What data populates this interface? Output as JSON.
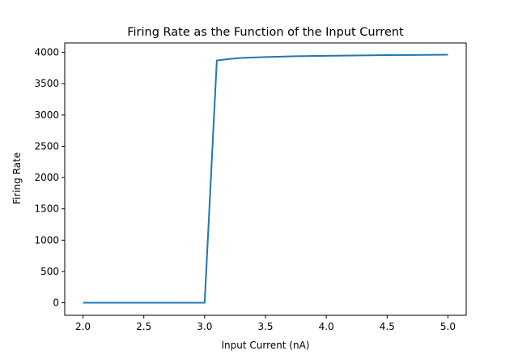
{
  "chart_data": {
    "type": "line",
    "title": "Firing Rate as the Function of the Input Current",
    "xlabel": "Input Current (nA)",
    "ylabel": "Firing Rate",
    "xlim": [
      1.85,
      5.15
    ],
    "ylim": [
      -200,
      4150
    ],
    "xticks": [
      2.0,
      2.5,
      3.0,
      3.5,
      4.0,
      4.5,
      5.0
    ],
    "xtick_labels": [
      "2.0",
      "2.5",
      "3.0",
      "3.5",
      "4.0",
      "4.5",
      "5.0"
    ],
    "yticks": [
      0,
      500,
      1000,
      1500,
      2000,
      2500,
      3000,
      3500,
      4000
    ],
    "ytick_labels": [
      "0",
      "500",
      "1000",
      "1500",
      "2000",
      "2500",
      "3000",
      "3500",
      "4000"
    ],
    "grid": false,
    "series": [
      {
        "color": "#1f77b4",
        "x": [
          2.0,
          2.5,
          3.0,
          3.1,
          3.2,
          3.3,
          3.5,
          3.75,
          4.0,
          4.5,
          5.0
        ],
        "values": [
          0,
          0,
          0,
          3870,
          3895,
          3910,
          3925,
          3938,
          3945,
          3955,
          3962
        ]
      }
    ]
  }
}
